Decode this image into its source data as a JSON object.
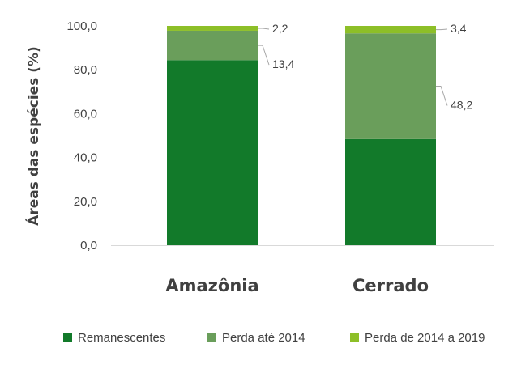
{
  "chart_data": {
    "type": "bar",
    "stacked": true,
    "categories": [
      "Amazônia",
      "Cerrado"
    ],
    "series": [
      {
        "name": "Remanescentes",
        "values": [
          84.4,
          48.4
        ],
        "color": "#127a2a",
        "labels": [
          null,
          null
        ]
      },
      {
        "name": "Perda até 2014",
        "values": [
          13.4,
          48.2
        ],
        "color": "#6a9e5b",
        "labels": [
          "13,4",
          "48,2"
        ]
      },
      {
        "name": "Perda de 2014 a 2019",
        "values": [
          2.2,
          3.4
        ],
        "color": "#8dbf28",
        "labels": [
          "2,2",
          "3,4"
        ]
      }
    ],
    "ylabel": "Áreas das espécies (%)",
    "ylim": [
      0,
      100
    ],
    "yticks": [
      "0,0",
      "20,0",
      "40,0",
      "60,0",
      "80,0",
      "100,0"
    ],
    "ytick_values": [
      0,
      20,
      40,
      60,
      80,
      100
    ],
    "grid": false,
    "legend_position": "bottom"
  }
}
